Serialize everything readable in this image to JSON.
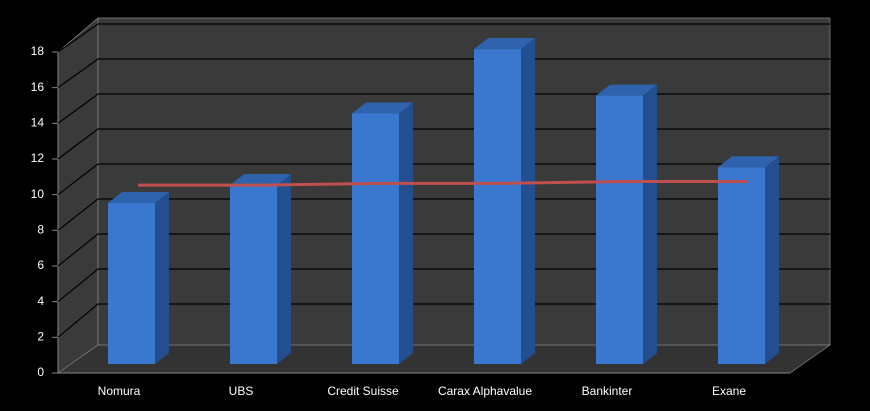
{
  "chart_data": {
    "type": "bar",
    "categories": [
      "Nomura",
      "UBS",
      "Credit Suisse",
      "Carax Alphavalue",
      "Bankinter",
      "Exane"
    ],
    "series": [
      {
        "type": "bar",
        "color": "#3a78cf",
        "values": [
          9,
          10,
          14,
          17.6,
          15,
          11
        ]
      },
      {
        "type": "line",
        "color": "#c0504d",
        "values": [
          10,
          10,
          10.1,
          10.1,
          10.2,
          10.2
        ]
      }
    ],
    "ylim": [
      0,
      18
    ],
    "yticks": [
      0,
      2,
      4,
      6,
      8,
      10,
      12,
      14,
      16,
      18
    ],
    "grid": true
  }
}
